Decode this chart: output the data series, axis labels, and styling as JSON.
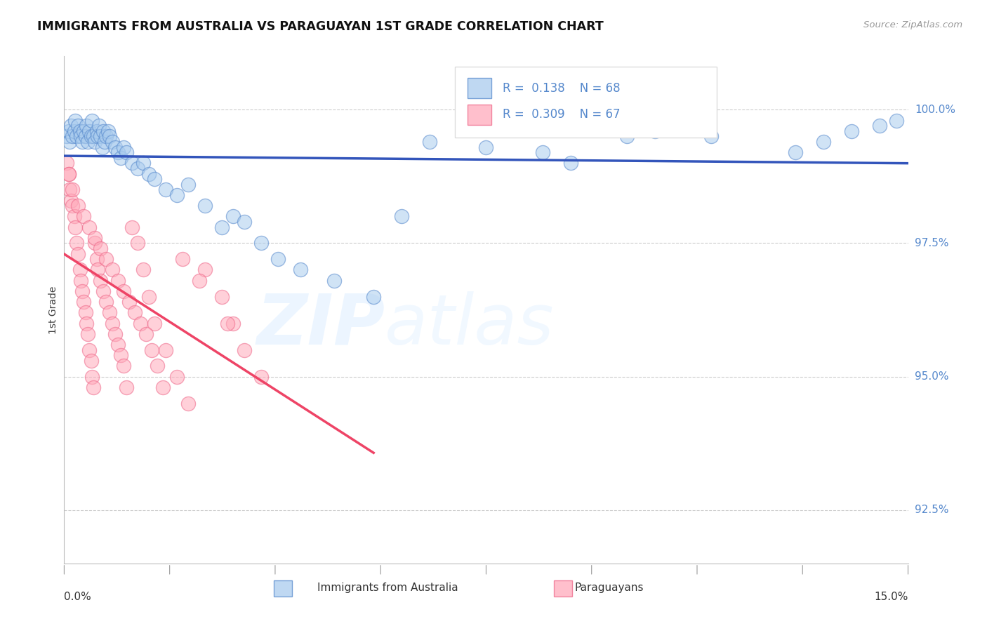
{
  "title": "IMMIGRANTS FROM AUSTRALIA VS PARAGUAYAN 1ST GRADE CORRELATION CHART",
  "source": "Source: ZipAtlas.com",
  "ylabel": "1st Grade",
  "legend_labels": [
    "Immigrants from Australia",
    "Paraguayans"
  ],
  "legend_r": [
    0.138,
    0.309
  ],
  "legend_n": [
    68,
    67
  ],
  "x_min": 0.0,
  "x_max": 15.0,
  "y_min": 91.5,
  "y_max": 101.0,
  "yticks": [
    92.5,
    95.0,
    97.5,
    100.0
  ],
  "blue_fill": "#AACCEE",
  "blue_edge": "#5588CC",
  "pink_fill": "#FFAABB",
  "pink_edge": "#EE6688",
  "blue_line": "#3355BB",
  "pink_line": "#EE4466",
  "bg": "#FFFFFF",
  "tick_color": "#5588CC",
  "blue_x": [
    0.05,
    0.08,
    0.1,
    0.12,
    0.15,
    0.18,
    0.2,
    0.22,
    0.25,
    0.28,
    0.3,
    0.32,
    0.35,
    0.38,
    0.4,
    0.42,
    0.45,
    0.48,
    0.5,
    0.52,
    0.55,
    0.58,
    0.6,
    0.62,
    0.65,
    0.68,
    0.7,
    0.72,
    0.75,
    0.78,
    0.8,
    0.85,
    0.9,
    0.95,
    1.0,
    1.05,
    1.1,
    1.2,
    1.3,
    1.4,
    1.5,
    1.6,
    1.8,
    2.0,
    2.2,
    2.5,
    2.8,
    3.0,
    3.2,
    3.5,
    3.8,
    4.2,
    4.8,
    5.5,
    6.5,
    7.5,
    8.5,
    10.0,
    10.5,
    11.0,
    11.5,
    13.0,
    13.5,
    14.0,
    14.5,
    14.8,
    6.0,
    9.0
  ],
  "blue_y": [
    99.5,
    99.6,
    99.4,
    99.7,
    99.5,
    99.6,
    99.8,
    99.5,
    99.7,
    99.6,
    99.5,
    99.4,
    99.6,
    99.5,
    99.7,
    99.4,
    99.6,
    99.5,
    99.8,
    99.5,
    99.4,
    99.6,
    99.5,
    99.7,
    99.5,
    99.3,
    99.6,
    99.4,
    99.5,
    99.6,
    99.5,
    99.4,
    99.3,
    99.2,
    99.1,
    99.3,
    99.2,
    99.0,
    98.9,
    99.0,
    98.8,
    98.7,
    98.5,
    98.4,
    98.6,
    98.2,
    97.8,
    98.0,
    97.9,
    97.5,
    97.2,
    97.0,
    96.8,
    96.5,
    99.4,
    99.3,
    99.2,
    99.5,
    99.6,
    99.7,
    99.5,
    99.2,
    99.4,
    99.6,
    99.7,
    99.8,
    98.0,
    99.0
  ],
  "pink_x": [
    0.05,
    0.08,
    0.1,
    0.12,
    0.15,
    0.18,
    0.2,
    0.22,
    0.25,
    0.28,
    0.3,
    0.32,
    0.35,
    0.38,
    0.4,
    0.42,
    0.45,
    0.48,
    0.5,
    0.52,
    0.55,
    0.58,
    0.6,
    0.65,
    0.7,
    0.75,
    0.8,
    0.85,
    0.9,
    0.95,
    1.0,
    1.05,
    1.1,
    1.2,
    1.3,
    1.4,
    1.5,
    1.6,
    1.8,
    2.0,
    2.2,
    2.5,
    2.8,
    3.0,
    3.2,
    3.5,
    0.08,
    0.15,
    0.25,
    0.35,
    0.45,
    0.55,
    0.65,
    0.75,
    0.85,
    0.95,
    1.05,
    1.15,
    1.25,
    1.35,
    1.45,
    1.55,
    1.65,
    1.75,
    2.1,
    2.4,
    2.9
  ],
  "pink_y": [
    99.0,
    98.8,
    98.5,
    98.3,
    98.2,
    98.0,
    97.8,
    97.5,
    97.3,
    97.0,
    96.8,
    96.6,
    96.4,
    96.2,
    96.0,
    95.8,
    95.5,
    95.3,
    95.0,
    94.8,
    97.5,
    97.2,
    97.0,
    96.8,
    96.6,
    96.4,
    96.2,
    96.0,
    95.8,
    95.6,
    95.4,
    95.2,
    94.8,
    97.8,
    97.5,
    97.0,
    96.5,
    96.0,
    95.5,
    95.0,
    94.5,
    97.0,
    96.5,
    96.0,
    95.5,
    95.0,
    98.8,
    98.5,
    98.2,
    98.0,
    97.8,
    97.6,
    97.4,
    97.2,
    97.0,
    96.8,
    96.6,
    96.4,
    96.2,
    96.0,
    95.8,
    95.5,
    95.2,
    94.8,
    97.2,
    96.8,
    96.0
  ]
}
